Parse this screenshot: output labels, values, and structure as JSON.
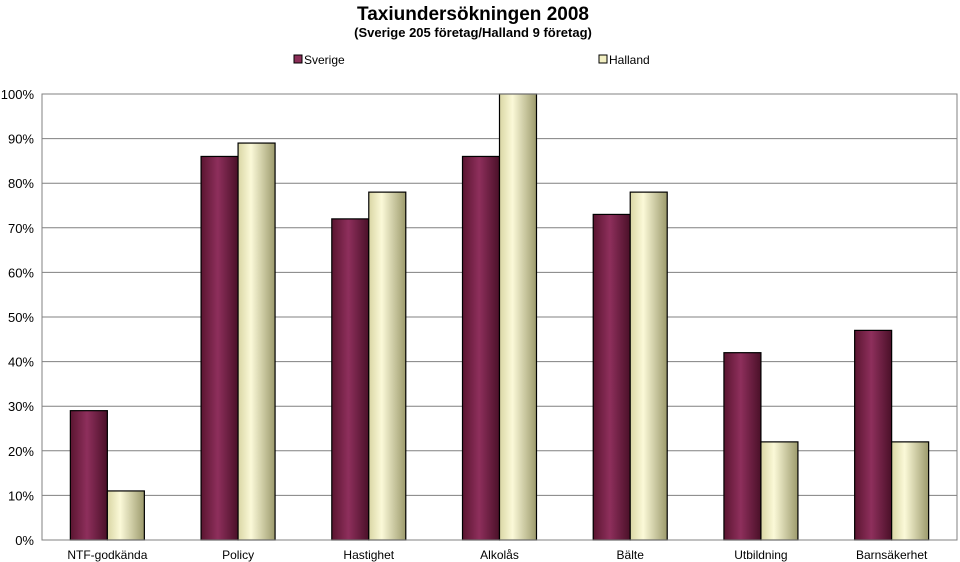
{
  "chart_data": {
    "type": "bar",
    "title": "Taxiundersökningen 2008",
    "subtitle": "(Sverige 205 företag/Halland 9 företag)",
    "categories": [
      "NTF-godkända",
      "Policy",
      "Hastighet",
      "Alkolås",
      "Bälte",
      "Utbildning",
      "Barnsäkerhet"
    ],
    "series": [
      {
        "name": "Sverige",
        "values": [
          29,
          86,
          72,
          86,
          73,
          42,
          47
        ],
        "color": "#8B2E58"
      },
      {
        "name": "Halland",
        "values": [
          11,
          89,
          78,
          100,
          78,
          22,
          22
        ],
        "color": "#F2EFC2"
      }
    ],
    "ylim": [
      0,
      100
    ],
    "yticks": [
      "0%",
      "10%",
      "20%",
      "30%",
      "40%",
      "50%",
      "60%",
      "70%",
      "80%",
      "90%",
      "100%"
    ],
    "grid": true,
    "legend_position": "top"
  }
}
